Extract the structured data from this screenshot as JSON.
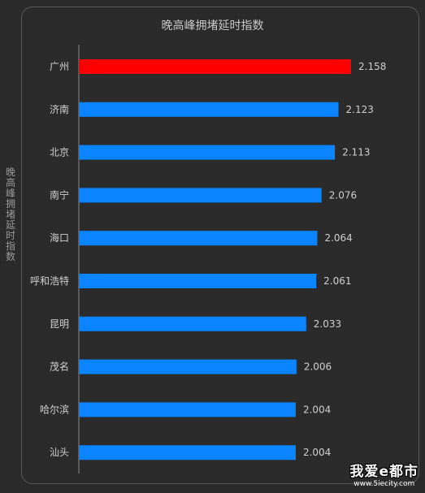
{
  "chart_data": {
    "type": "bar",
    "orientation": "horizontal",
    "title": "晚高峰拥堵延时指数",
    "ylabel": "晚高峰拥堵延时指数",
    "categories": [
      "广州",
      "济南",
      "北京",
      "南宁",
      "海口",
      "呼和浩特",
      "昆明",
      "茂名",
      "哈尔滨",
      "汕头"
    ],
    "values": [
      2.158,
      2.123,
      2.113,
      2.076,
      2.064,
      2.061,
      2.033,
      2.006,
      2.004,
      2.004
    ],
    "value_labels": [
      "2.158",
      "2.123",
      "2.113",
      "2.076",
      "2.064",
      "2.061",
      "2.033",
      "2.006",
      "2.004",
      "2.004"
    ],
    "bar_colors": [
      "#ff0000",
      "#0a84ff",
      "#0a84ff",
      "#0a84ff",
      "#0a84ff",
      "#0a84ff",
      "#0a84ff",
      "#0a84ff",
      "#0a84ff",
      "#0a84ff"
    ],
    "xlim": [
      1.4,
      2.2
    ],
    "grid": false,
    "legend": "none"
  },
  "watermark": {
    "main": "我爱e都市",
    "url": "www.5iecity.com"
  },
  "colors": {
    "background": "#2b2b2b",
    "highlight": "#ff0000",
    "bar": "#0a84ff",
    "text": "#d0d0d0"
  }
}
